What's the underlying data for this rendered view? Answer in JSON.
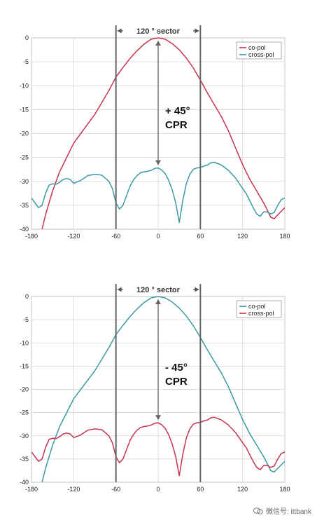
{
  "colors": {
    "red": "#c8334d",
    "teal": "#3b9aa5",
    "grid": "#cfd6dd",
    "sector_line": "#666666",
    "axis": "#888888"
  },
  "chart_data": [
    {
      "type": "line",
      "xlim": [
        -180,
        180
      ],
      "ylim": [
        -40,
        0
      ],
      "xticks": [
        -180,
        -120,
        -60,
        0,
        60,
        120,
        180
      ],
      "yticks": [
        0,
        -5,
        -10,
        -15,
        -20,
        -25,
        -30,
        -35,
        -40
      ],
      "grid": true,
      "legend_position": "top-right",
      "sector_label": "120 ° sector",
      "sector_bounds": [
        -60,
        60
      ],
      "annotation_line1": "+ 45°",
      "annotation_line2": "CPR",
      "series": [
        {
          "name": "co-pol",
          "color": "#c8334d",
          "x": [
            -165,
            -160,
            -150,
            -140,
            -130,
            -120,
            -110,
            -100,
            -90,
            -80,
            -70,
            -60,
            -50,
            -40,
            -30,
            -20,
            -10,
            0,
            10,
            20,
            30,
            40,
            50,
            60,
            70,
            80,
            90,
            100,
            110,
            120,
            130,
            140,
            150,
            155,
            160,
            165,
            170,
            180
          ],
          "y": [
            -40,
            -37,
            -32,
            -28,
            -25,
            -22,
            -20,
            -18,
            -16,
            -13.5,
            -11,
            -8.2,
            -6.2,
            -4.3,
            -2.7,
            -1.3,
            -0.3,
            0,
            -0.3,
            -1.2,
            -2.5,
            -4.2,
            -6.3,
            -8.8,
            -11.5,
            -14,
            -16.5,
            -19.5,
            -23,
            -26.5,
            -29.5,
            -32,
            -34.5,
            -36,
            -37.5,
            -37.8,
            -37,
            -35.5
          ]
        },
        {
          "name": "cross-pol",
          "color": "#3b9aa5",
          "x": [
            -180,
            -175,
            -170,
            -165,
            -160,
            -155,
            -150,
            -145,
            -140,
            -135,
            -130,
            -125,
            -120,
            -110,
            -100,
            -90,
            -80,
            -70,
            -65,
            -60,
            -55,
            -50,
            -45,
            -40,
            -35,
            -30,
            -25,
            -20,
            -15,
            -10,
            -5,
            0,
            5,
            10,
            15,
            20,
            25,
            30,
            35,
            40,
            45,
            50,
            55,
            60,
            65,
            70,
            75,
            80,
            90,
            100,
            110,
            120,
            125,
            130,
            135,
            140,
            145,
            150,
            155,
            160,
            165,
            170,
            175,
            180
          ],
          "y": [
            -33.5,
            -34.5,
            -35.5,
            -35,
            -32.5,
            -30.8,
            -30.5,
            -30.6,
            -30.2,
            -29.6,
            -29.4,
            -29.6,
            -30.4,
            -29.8,
            -28.8,
            -28.5,
            -28.7,
            -30,
            -31.5,
            -34.5,
            -35.8,
            -35,
            -33,
            -31,
            -29.7,
            -28.8,
            -28.2,
            -28,
            -27.9,
            -27.7,
            -27.3,
            -27.2,
            -27.6,
            -28.4,
            -29.8,
            -31.8,
            -34.5,
            -38.6,
            -34,
            -30.5,
            -28.5,
            -27.5,
            -27.2,
            -27.1,
            -26.8,
            -26.6,
            -26.1,
            -26,
            -26.6,
            -27.7,
            -29.3,
            -31.5,
            -32.5,
            -34,
            -35.5,
            -36.8,
            -37.3,
            -36.4,
            -36.4,
            -36.8,
            -36.5,
            -35,
            -33.8,
            -33.5
          ]
        }
      ]
    },
    {
      "type": "line",
      "xlim": [
        -180,
        180
      ],
      "ylim": [
        -40,
        0
      ],
      "xticks": [
        -180,
        -120,
        -60,
        0,
        60,
        120,
        180
      ],
      "yticks": [
        0,
        -5,
        -10,
        -15,
        -20,
        -25,
        -30,
        -35,
        -40
      ],
      "grid": true,
      "legend_position": "top-right",
      "sector_label": "120 ° sector",
      "sector_bounds": [
        -60,
        60
      ],
      "annotation_line1": "- 45°",
      "annotation_line2": "CPR",
      "series": [
        {
          "name": "co-pol",
          "color": "#3b9aa5",
          "x": [
            -165,
            -160,
            -150,
            -140,
            -130,
            -120,
            -110,
            -100,
            -90,
            -80,
            -70,
            -60,
            -50,
            -40,
            -30,
            -20,
            -10,
            0,
            10,
            20,
            30,
            40,
            50,
            60,
            70,
            80,
            90,
            100,
            110,
            120,
            130,
            140,
            150,
            155,
            160,
            165,
            170,
            180
          ],
          "y": [
            -40,
            -37,
            -32,
            -28,
            -25,
            -22,
            -20,
            -18,
            -16,
            -13.5,
            -11,
            -8.2,
            -6.2,
            -4.3,
            -2.7,
            -1.3,
            -0.3,
            0,
            -0.3,
            -1.2,
            -2.5,
            -4.2,
            -6.3,
            -8.8,
            -11.5,
            -14,
            -16.5,
            -19.5,
            -23,
            -26.5,
            -29.5,
            -32,
            -34.5,
            -36,
            -37.5,
            -37.8,
            -37,
            -35.5
          ]
        },
        {
          "name": "cross-pol",
          "color": "#c8334d",
          "x": [
            -180,
            -175,
            -170,
            -165,
            -160,
            -155,
            -150,
            -145,
            -140,
            -135,
            -130,
            -125,
            -120,
            -110,
            -100,
            -90,
            -80,
            -70,
            -65,
            -60,
            -55,
            -50,
            -45,
            -40,
            -35,
            -30,
            -25,
            -20,
            -15,
            -10,
            -5,
            0,
            5,
            10,
            15,
            20,
            25,
            30,
            35,
            40,
            45,
            50,
            55,
            60,
            65,
            70,
            75,
            80,
            90,
            100,
            110,
            120,
            125,
            130,
            135,
            140,
            145,
            150,
            155,
            160,
            165,
            170,
            175,
            180
          ],
          "y": [
            -33.5,
            -34.5,
            -35.5,
            -35,
            -32.5,
            -30.8,
            -30.5,
            -30.6,
            -30.2,
            -29.6,
            -29.4,
            -29.6,
            -30.4,
            -29.8,
            -28.8,
            -28.5,
            -28.7,
            -30,
            -31.5,
            -34.5,
            -35.8,
            -35,
            -33,
            -31,
            -29.7,
            -28.8,
            -28.2,
            -28,
            -27.9,
            -27.7,
            -27.3,
            -27.2,
            -27.6,
            -28.4,
            -29.8,
            -31.8,
            -34.5,
            -38.6,
            -34,
            -30.5,
            -28.5,
            -27.5,
            -27.2,
            -27.1,
            -26.8,
            -26.6,
            -26.1,
            -26,
            -26.6,
            -27.7,
            -29.3,
            -31.5,
            -32.5,
            -34,
            -35.5,
            -36.8,
            -37.3,
            -36.4,
            -36.4,
            -36.8,
            -36.5,
            -35,
            -33.8,
            -33.5
          ]
        }
      ]
    }
  ],
  "watermark": {
    "text": "微信号: ittbank",
    "icon": "wechat-logo-icon"
  }
}
